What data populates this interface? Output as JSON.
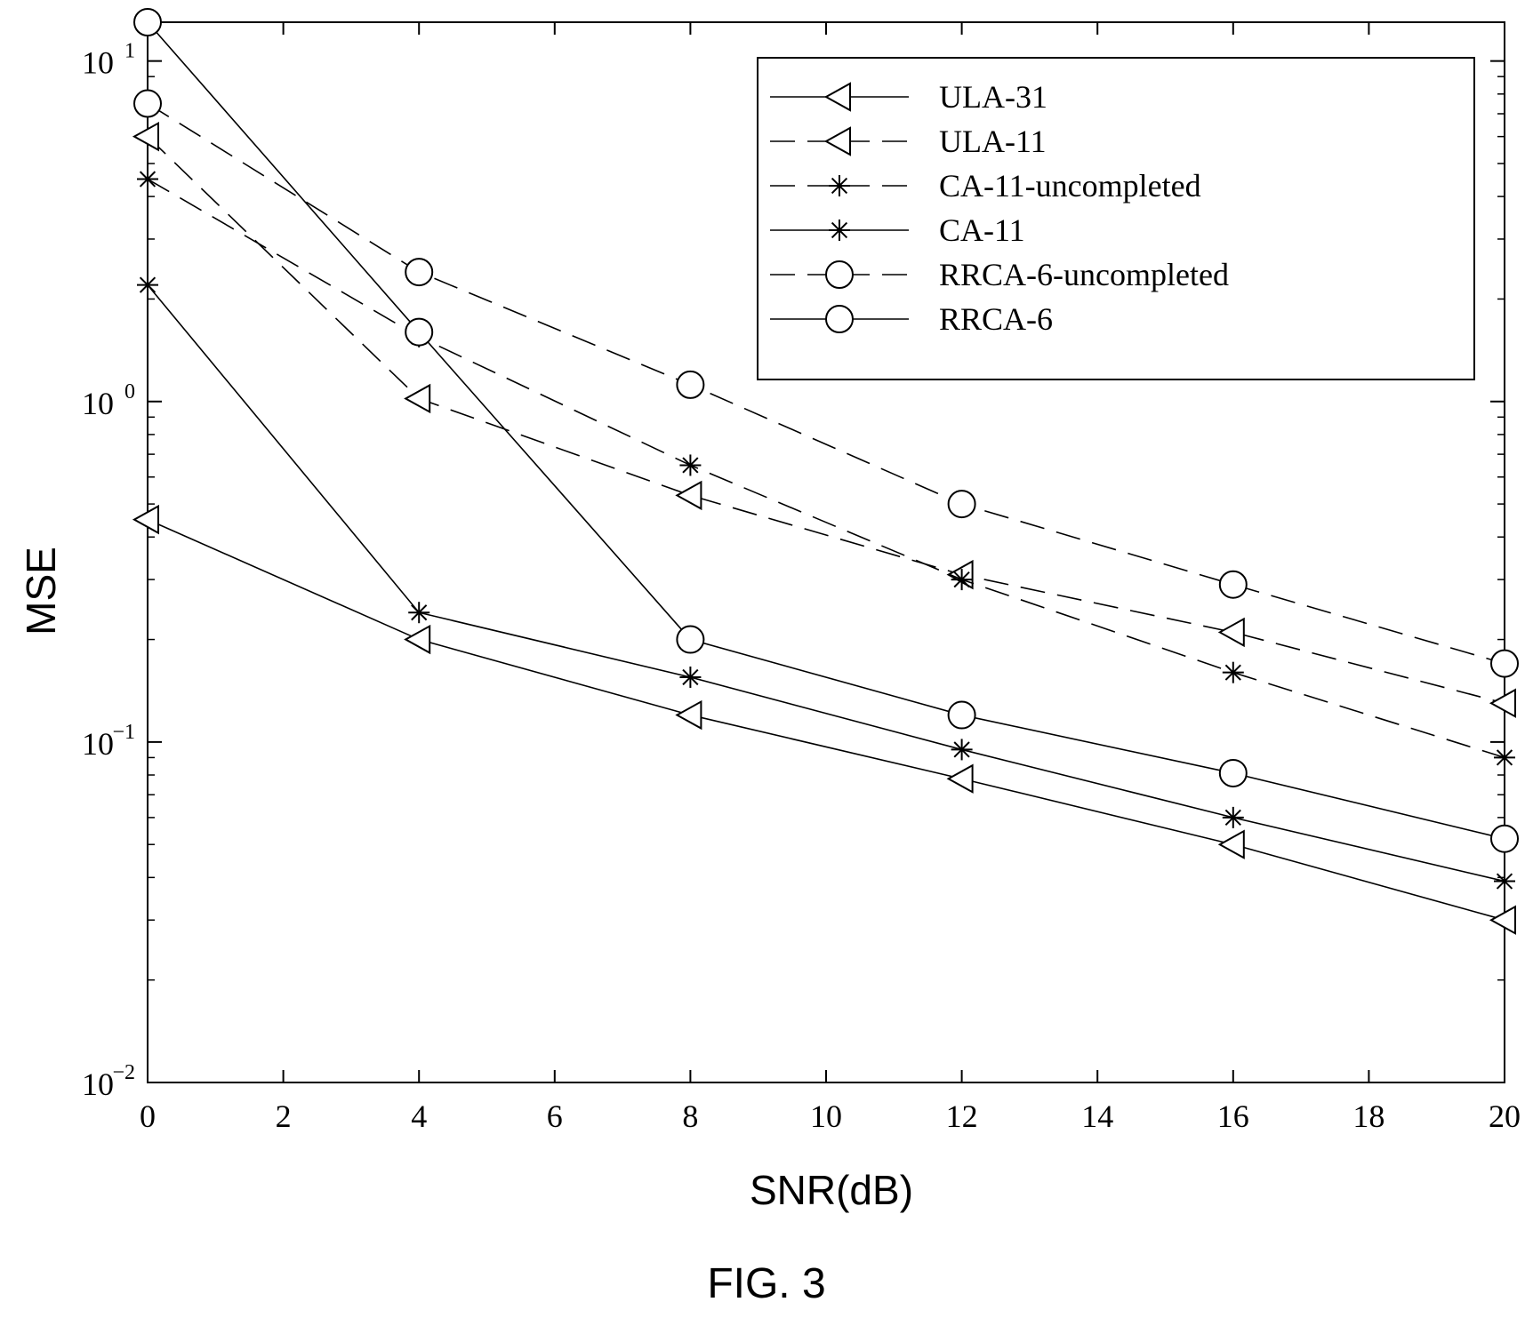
{
  "chart_data": {
    "type": "line",
    "title": "",
    "xlabel": "SNR(dB)",
    "ylabel": "MSE",
    "xlim": [
      0,
      20
    ],
    "ylim": [
      0.01,
      13
    ],
    "yscale": "log",
    "grid": false,
    "legend_position": "top-right",
    "x_ticks": [
      0,
      2,
      4,
      6,
      8,
      10,
      12,
      14,
      16,
      18,
      20
    ],
    "y_ticks": [
      {
        "value": 10,
        "base": "10",
        "exp": "1"
      },
      {
        "value": 1,
        "base": "10",
        "exp": "0"
      },
      {
        "value": 0.1,
        "base": "10",
        "exp": "−1"
      },
      {
        "value": 0.01,
        "base": "10",
        "exp": "−2"
      }
    ],
    "x": [
      0,
      4,
      8,
      12,
      16,
      20
    ],
    "series": [
      {
        "name": "ULA-31",
        "line": "solid",
        "marker": "triangle-left",
        "values": [
          0.45,
          0.2,
          0.12,
          0.078,
          0.05,
          0.03
        ]
      },
      {
        "name": "ULA-11",
        "line": "dashed",
        "marker": "triangle-left",
        "values": [
          6.0,
          1.02,
          0.53,
          0.31,
          0.21,
          0.13
        ]
      },
      {
        "name": "CA-11-uncompleted",
        "line": "dashed",
        "marker": "asterisk",
        "values": [
          4.5,
          1.55,
          0.65,
          0.3,
          0.16,
          0.09
        ]
      },
      {
        "name": "CA-11",
        "line": "solid",
        "marker": "asterisk",
        "values": [
          2.2,
          0.24,
          0.155,
          0.095,
          0.06,
          0.039
        ]
      },
      {
        "name": "RRCA-6-uncompleted",
        "line": "dashed",
        "marker": "circle",
        "values": [
          7.5,
          2.4,
          1.12,
          0.5,
          0.29,
          0.17
        ]
      },
      {
        "name": "RRCA-6",
        "line": "solid",
        "marker": "circle",
        "values": [
          13.0,
          1.6,
          0.2,
          0.12,
          0.081,
          0.052
        ]
      }
    ]
  },
  "caption": "FIG. 3"
}
